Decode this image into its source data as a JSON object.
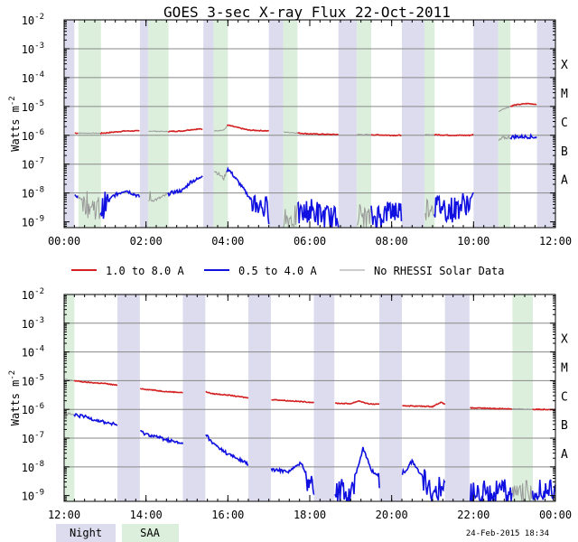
{
  "title": "GOES 3-sec X-ray Flux   22-Oct-2011",
  "ylabel": "Watts m",
  "ylabel_sup": "-2",
  "legend": [
    {
      "label": "1.0 to 8.0 A",
      "color": "#d42020"
    },
    {
      "label": "0.5 to 4.0 A",
      "color": "#1010e0"
    },
    {
      "label": "No RHESSI Solar Data",
      "color": "#999999"
    }
  ],
  "ytick_mantissa": "10",
  "ytick_exponents": [
    "-9",
    "-8",
    "-7",
    "-6",
    "-5",
    "-4",
    "-3",
    "-2"
  ],
  "flare_classes": [
    "A",
    "B",
    "C",
    "M",
    "X"
  ],
  "panel1_xticks": [
    "00:00",
    "02:00",
    "04:00",
    "06:00",
    "08:00",
    "10:00",
    "12:00"
  ],
  "panel2_xticks": [
    "12:00",
    "14:00",
    "16:00",
    "18:00",
    "20:00",
    "22:00",
    "00:00"
  ],
  "night_label": "Night",
  "saa_label": "SAA",
  "timestamp": "24-Feb-2015 18:34",
  "colors": {
    "night": "#dcdcee",
    "saa": "#dcefdc",
    "long": "#d42020",
    "short": "#1010e0",
    "gap": "#999999",
    "grid": "#888888"
  },
  "chart_data": [
    {
      "type": "line",
      "title": "GOES 3-sec X-ray Flux   22-Oct-2011",
      "xlabel": "",
      "ylabel": "Watts m-2",
      "xlim_hours": [
        0,
        12
      ],
      "ylim_log10": [
        -9.2,
        -2
      ],
      "night_intervals": [
        [
          -0.1,
          0.25
        ],
        [
          1.85,
          2.05
        ],
        [
          3.4,
          3.65
        ],
        [
          5.0,
          5.35
        ],
        [
          6.7,
          7.15
        ],
        [
          8.25,
          8.8
        ],
        [
          10.0,
          10.6
        ],
        [
          11.55,
          12.1
        ]
      ],
      "saa_intervals": [
        [
          0.35,
          0.9
        ],
        [
          2.05,
          2.55
        ],
        [
          3.65,
          4.0
        ],
        [
          5.35,
          5.7
        ],
        [
          7.15,
          7.5
        ],
        [
          8.8,
          9.05
        ],
        [
          10.6,
          10.9
        ]
      ],
      "series": [
        {
          "name": "1.0 to 8.0 A",
          "x": [
            0,
            0.9,
            1.0,
            1.5,
            2.0,
            2.5,
            2.9,
            3.0,
            3.3,
            3.6,
            3.9,
            4.0,
            4.5,
            5.0,
            5.5,
            6.0,
            6.5,
            7.0,
            7.5,
            8.0,
            8.5,
            9.0,
            9.5,
            9.9,
            10.1,
            10.3,
            10.5,
            10.7,
            11.0,
            11.3,
            11.6,
            12.0
          ],
          "log10": [
            -5.92,
            -5.93,
            -5.92,
            -5.85,
            -5.85,
            -5.87,
            -5.85,
            -5.82,
            -5.78,
            -5.85,
            -5.82,
            -5.65,
            -5.82,
            -5.85,
            -5.9,
            -5.95,
            -5.97,
            -5.97,
            -5.98,
            -6.0,
            -6.0,
            -5.98,
            -6.0,
            -6.0,
            -5.95,
            -5.7,
            -5.3,
            -5.1,
            -4.95,
            -4.9,
            -4.93,
            -4.95
          ]
        },
        {
          "name": "0.5 to 4.0 A",
          "x": [
            0,
            0.3,
            0.6,
            0.9,
            1.2,
            1.5,
            1.8,
            2.0,
            2.3,
            2.6,
            2.9,
            3.1,
            3.3,
            3.5,
            3.7,
            3.9,
            4.0,
            4.3,
            4.6,
            5.0,
            5.5,
            6.0,
            6.5,
            7.0,
            7.5,
            8.0,
            8.5,
            9.0,
            9.5,
            9.9,
            10.0,
            10.15,
            10.3,
            10.5,
            10.7,
            11.0,
            11.4,
            11.8,
            12.0
          ],
          "log10": [
            -8.2,
            -8.1,
            -8.4,
            -8.6,
            -8.1,
            -7.9,
            -8.1,
            -8.3,
            -8.2,
            -8.0,
            -7.9,
            -7.6,
            -7.5,
            -7.15,
            -7.25,
            -7.5,
            -7.15,
            -7.7,
            -8.3,
            -8.6,
            -8.9,
            -8.6,
            -8.9,
            -8.7,
            -8.9,
            -8.6,
            -8.7,
            -8.4,
            -8.6,
            -8.3,
            -8.0,
            -7.4,
            -6.8,
            -6.35,
            -6.1,
            -6.05,
            -6.05,
            -6.1,
            -6.15
          ]
        }
      ]
    },
    {
      "type": "line",
      "title": "",
      "xlabel": "",
      "ylabel": "Watts m-2",
      "xlim_hours": [
        12,
        24
      ],
      "ylim_log10": [
        -9.2,
        -2
      ],
      "night_intervals": [
        [
          13.3,
          13.85
        ],
        [
          14.9,
          15.45
        ],
        [
          16.5,
          17.05
        ],
        [
          18.1,
          18.6
        ],
        [
          19.7,
          20.25
        ],
        [
          21.3,
          21.9
        ]
      ],
      "saa_intervals": [
        [
          12.0,
          12.25
        ],
        [
          22.95,
          23.45
        ]
      ],
      "series": [
        {
          "name": "1.0 to 8.0 A",
          "x": [
            12,
            12.5,
            13,
            13.5,
            14,
            14.5,
            15,
            15.2,
            15.4,
            15.6,
            16,
            16.5,
            17,
            17.5,
            18,
            18.5,
            19,
            19.2,
            19.4,
            19.6,
            20,
            20.5,
            21,
            21.2,
            21.4,
            21.6,
            22,
            22.5,
            23,
            23.5,
            24
          ],
          "log10": [
            -4.95,
            -5.05,
            -5.1,
            -5.2,
            -5.3,
            -5.38,
            -5.42,
            -5.45,
            -5.35,
            -5.45,
            -5.5,
            -5.6,
            -5.65,
            -5.7,
            -5.75,
            -5.78,
            -5.8,
            -5.7,
            -5.8,
            -5.82,
            -5.85,
            -5.88,
            -5.9,
            -5.75,
            -5.9,
            -5.95,
            -5.95,
            -5.97,
            -5.98,
            -6.0,
            -6.0
          ]
        },
        {
          "name": "0.5 to 4.0 A",
          "x": [
            12,
            12.5,
            13,
            13.5,
            14,
            14.5,
            15,
            15.2,
            15.35,
            15.6,
            16,
            16.5,
            17,
            17.5,
            17.8,
            18,
            18.5,
            19,
            19.3,
            19.5,
            19.8,
            20,
            20.5,
            20.8,
            21,
            21.5,
            22,
            22.5,
            23,
            23.5,
            24
          ],
          "log10": [
            -6.15,
            -6.25,
            -6.45,
            -6.6,
            -6.85,
            -7.05,
            -7.25,
            -7.3,
            -6.6,
            -7.15,
            -7.55,
            -7.9,
            -8.1,
            -8.15,
            -7.85,
            -8.6,
            -8.9,
            -8.9,
            -7.35,
            -8.1,
            -8.5,
            -8.85,
            -7.8,
            -8.45,
            -8.8,
            -8.9,
            -8.95,
            -8.9,
            -8.85,
            -8.9,
            -8.8
          ]
        }
      ]
    }
  ]
}
